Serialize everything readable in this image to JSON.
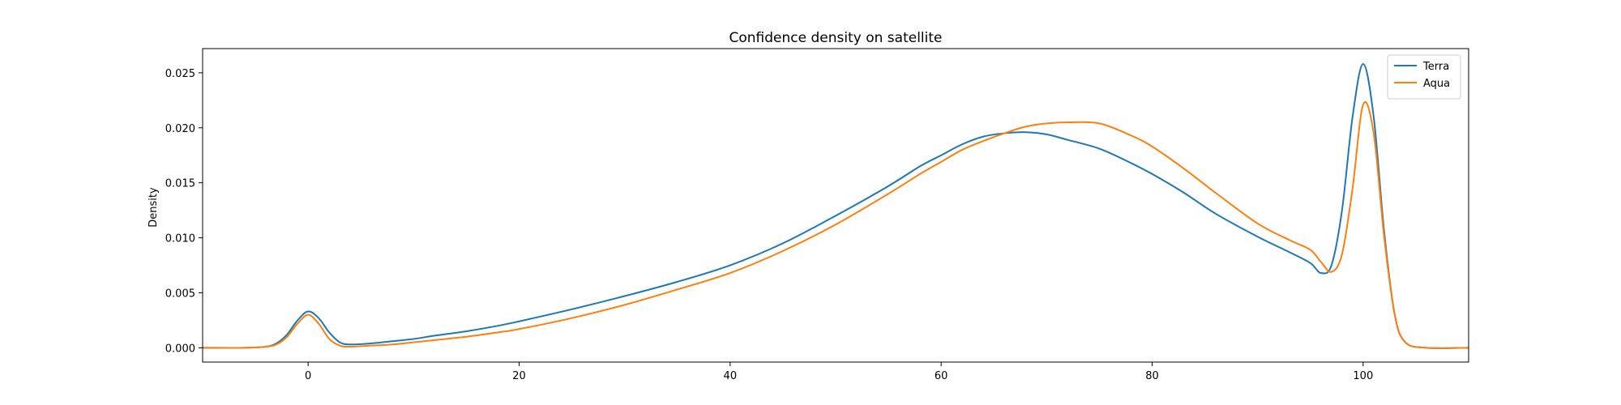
{
  "chart_data": {
    "type": "line",
    "title": "Confidence density on satellite",
    "xlabel": "",
    "ylabel": "Density",
    "xlim": [
      -10,
      110
    ],
    "ylim": [
      -0.0013,
      0.0272
    ],
    "xticks": [
      0,
      20,
      40,
      60,
      80,
      100
    ],
    "yticks": [
      0.0,
      0.005,
      0.01,
      0.015,
      0.02,
      0.025
    ],
    "ytick_labels": [
      "0.000",
      "0.005",
      "0.010",
      "0.015",
      "0.020",
      "0.025"
    ],
    "grid": false,
    "legend_position": "top-right",
    "series": [
      {
        "name": "Terra",
        "color": "#1f77b4",
        "x": [
          -10,
          -6,
          -4,
          -3,
          -2,
          -1,
          0,
          1,
          2,
          3,
          4,
          6,
          8,
          10,
          12,
          15,
          18,
          20,
          25,
          30,
          35,
          40,
          45,
          50,
          55,
          58,
          60,
          62,
          64,
          66,
          68,
          70,
          72,
          75,
          78,
          80,
          83,
          86,
          90,
          93,
          95,
          96,
          97,
          98,
          99,
          100,
          101,
          102,
          103,
          104,
          106,
          110
        ],
        "y": [
          0,
          0,
          0.0001,
          0.0004,
          0.0012,
          0.0025,
          0.0033,
          0.0027,
          0.0014,
          0.0005,
          0.0003,
          0.0004,
          0.0006,
          0.0008,
          0.0011,
          0.0015,
          0.002,
          0.0024,
          0.0035,
          0.0047,
          0.006,
          0.0075,
          0.0095,
          0.012,
          0.0147,
          0.0165,
          0.0175,
          0.0185,
          0.0192,
          0.0195,
          0.0196,
          0.0194,
          0.0189,
          0.0181,
          0.0168,
          0.0158,
          0.0141,
          0.0122,
          0.0101,
          0.0087,
          0.0077,
          0.0068,
          0.0075,
          0.0125,
          0.021,
          0.0258,
          0.021,
          0.0105,
          0.003,
          0.0005,
          0,
          0
        ]
      },
      {
        "name": "Aqua",
        "color": "#ff7f0e",
        "x": [
          -10,
          -6,
          -4,
          -3,
          -2,
          -1,
          0,
          1,
          2,
          3,
          4,
          6,
          8,
          10,
          12,
          15,
          18,
          20,
          25,
          30,
          35,
          40,
          45,
          50,
          55,
          58,
          60,
          62,
          64,
          66,
          68,
          70,
          72,
          75,
          78,
          80,
          83,
          86,
          90,
          93,
          95,
          96,
          97,
          98,
          99,
          100,
          101,
          102,
          103,
          104,
          106,
          110
        ],
        "y": [
          0,
          0,
          0.0001,
          0.0003,
          0.001,
          0.0022,
          0.003,
          0.0022,
          0.0008,
          0.0002,
          0.0001,
          0.0002,
          0.0003,
          0.0005,
          0.0007,
          0.001,
          0.0014,
          0.0017,
          0.0027,
          0.0039,
          0.0053,
          0.0068,
          0.0088,
          0.0112,
          0.014,
          0.0158,
          0.0169,
          0.018,
          0.0188,
          0.0195,
          0.0201,
          0.0204,
          0.0205,
          0.0204,
          0.0193,
          0.0183,
          0.0163,
          0.0141,
          0.0113,
          0.0098,
          0.0089,
          0.0078,
          0.0069,
          0.0085,
          0.0145,
          0.0221,
          0.0195,
          0.01,
          0.003,
          0.0005,
          0,
          0
        ]
      }
    ]
  }
}
